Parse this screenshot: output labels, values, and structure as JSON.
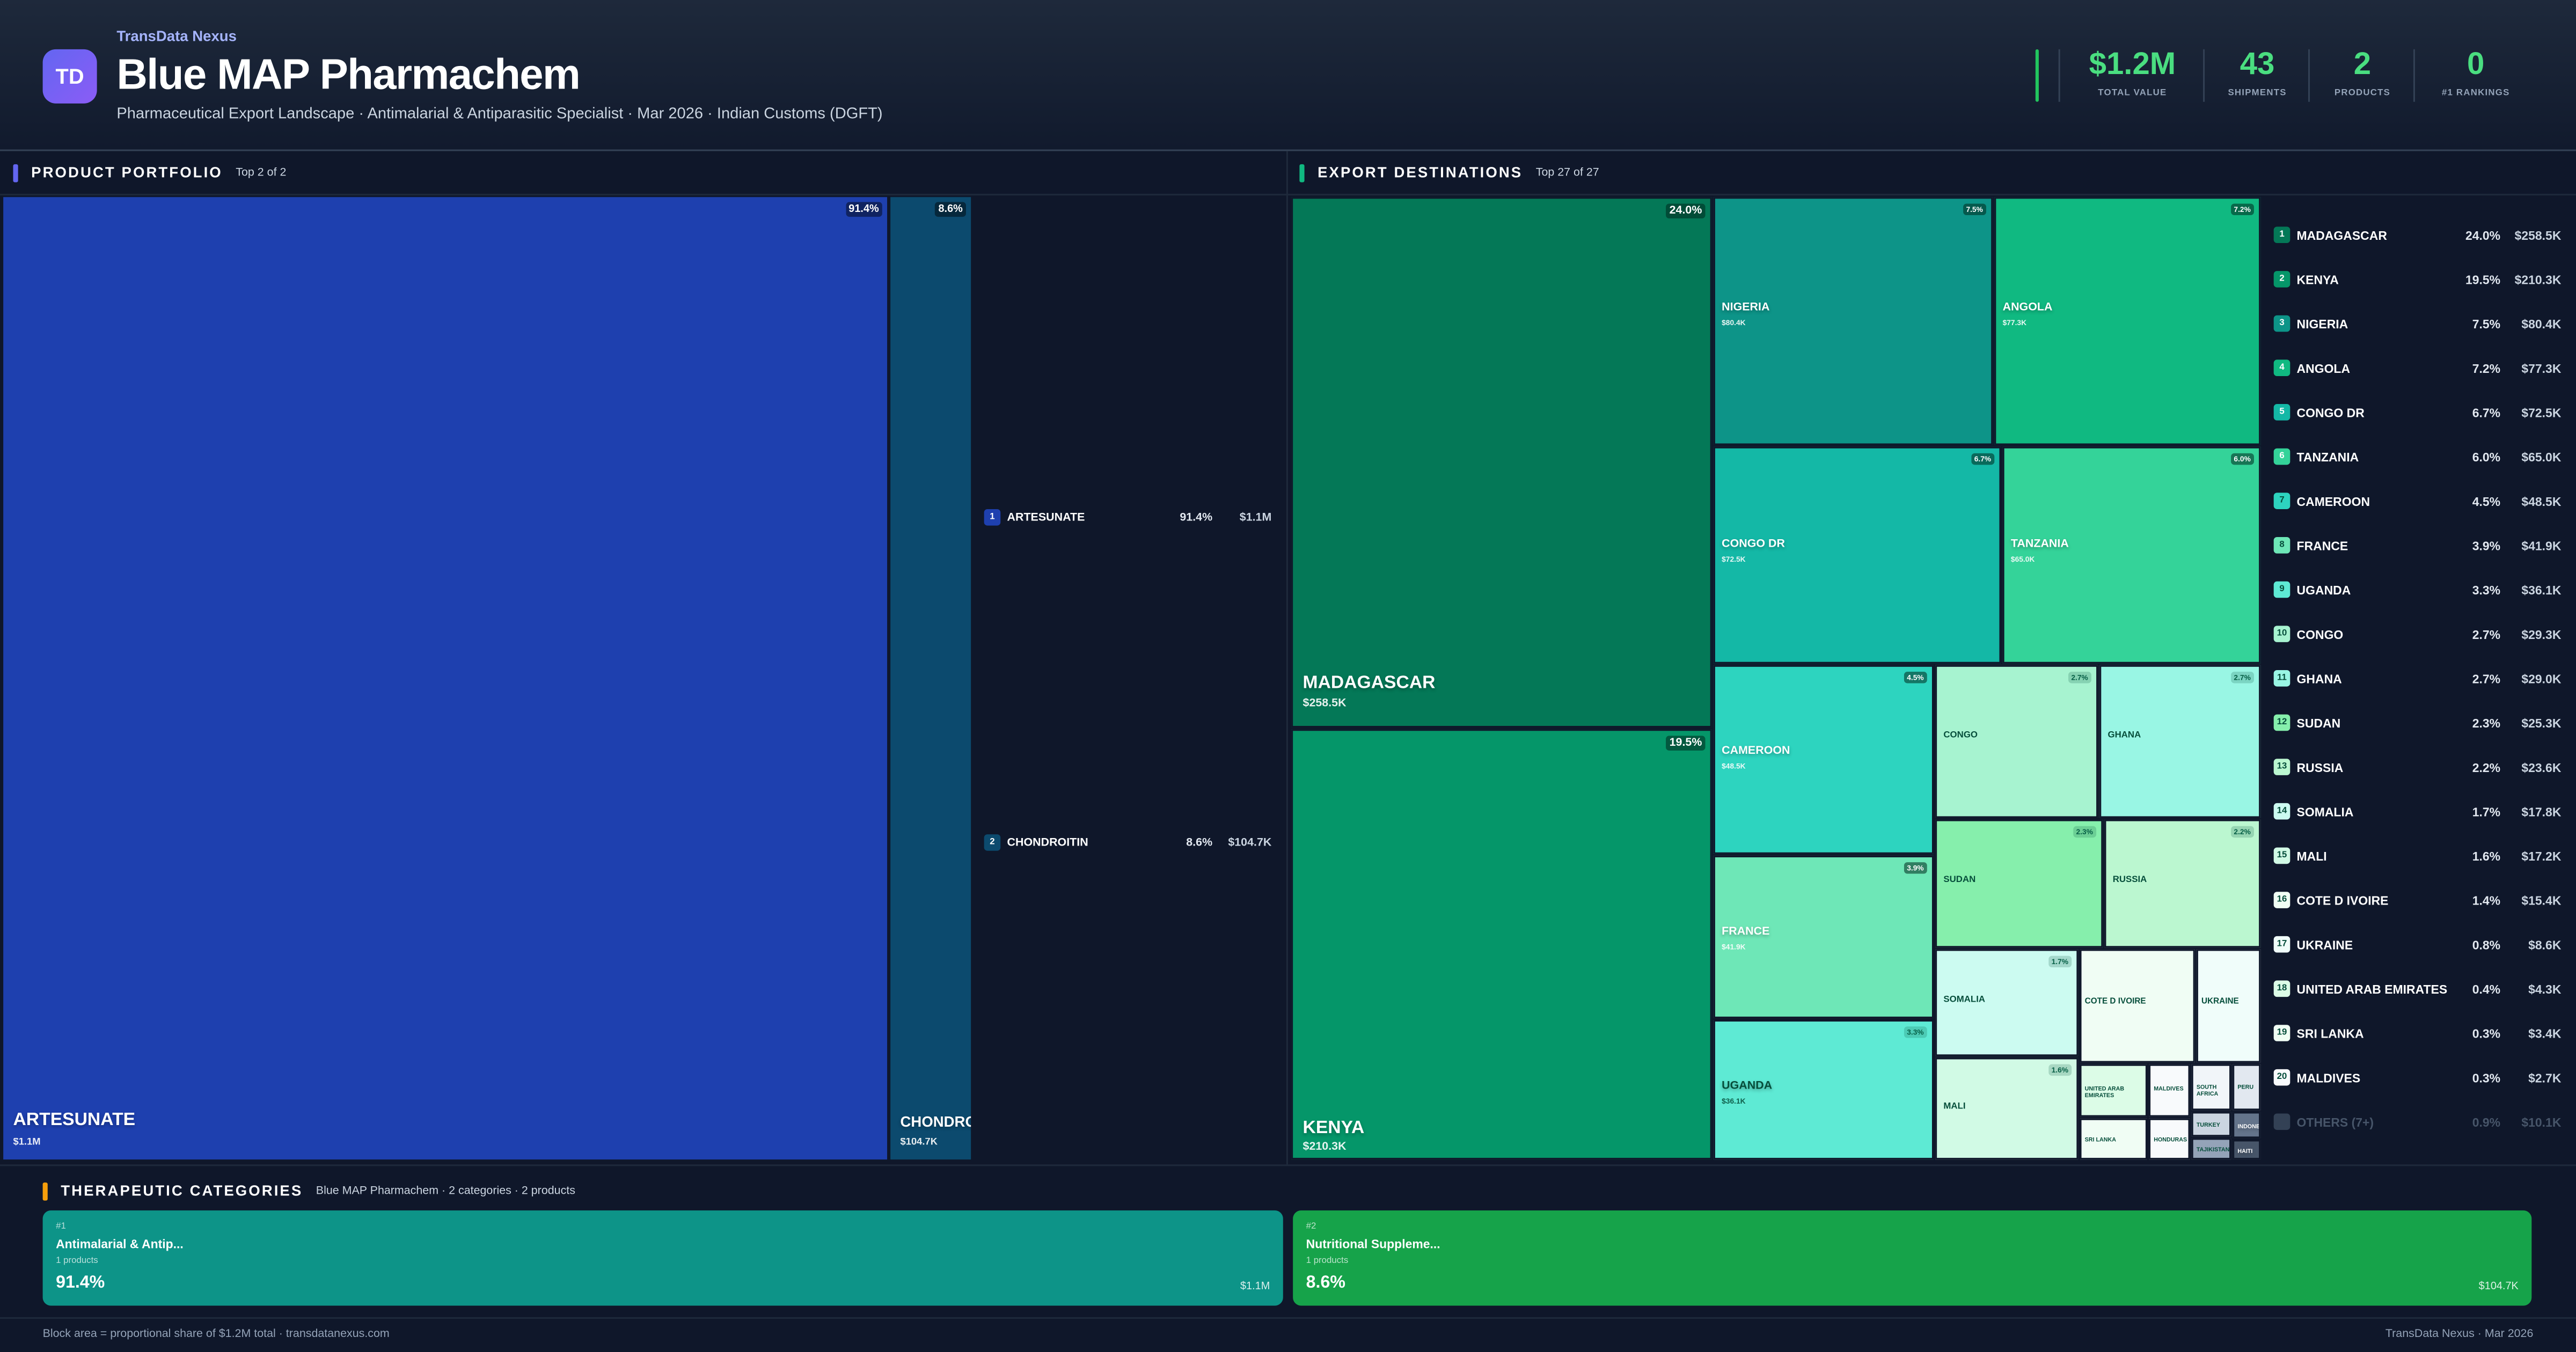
{
  "header": {
    "logo_text": "TD",
    "brand": "TransData Nexus",
    "title": "Blue MAP Pharmachem",
    "subtitle": "Pharmaceutical Export Landscape · Antimalarial & Antiparasitic Specialist · Mar 2026 · Indian Customs (DGFT)",
    "accent_color": "#4ade80",
    "stats": [
      {
        "value": "$1.2M",
        "label": "TOTAL VALUE"
      },
      {
        "value": "43",
        "label": "SHIPMENTS"
      },
      {
        "value": "2",
        "label": "PRODUCTS"
      },
      {
        "value": "0",
        "label": "#1 RANKINGS"
      }
    ]
  },
  "portfolio": {
    "title": "PRODUCT PORTFOLIO",
    "subtitle": "Top 2 of 2",
    "accent_color": "#6366f1",
    "items": [
      {
        "rank": "1",
        "name": "ARTESUNATE",
        "tile_name": "ARTESUNATE",
        "pct": "91.4%",
        "value": "$1.1M",
        "color": "#1e40af"
      },
      {
        "rank": "2",
        "name": "CHONDROITIN",
        "tile_name": "CHONDROITIN",
        "pct": "8.6%",
        "value": "$104.7K",
        "color": "#0c4a6e"
      }
    ]
  },
  "exports": {
    "title": "EXPORT DESTINATIONS",
    "subtitle": "Top 27 of 27",
    "accent_color": "#10b981",
    "tiles": [
      {
        "name": "MADAGASCAR",
        "value": "$258.5K",
        "pct": "24.0%",
        "color": "#047857"
      },
      {
        "name": "KENYA",
        "value": "$210.3K",
        "pct": "19.5%",
        "color": "#059669"
      },
      {
        "name": "NIGERIA",
        "value": "$80.4K",
        "pct": "7.5%",
        "color": "#0d9488"
      },
      {
        "name": "ANGOLA",
        "value": "$77.3K",
        "pct": "7.2%",
        "color": "#10b981"
      },
      {
        "name": "CONGO DR",
        "value": "$72.5K",
        "pct": "6.7%",
        "color": "#14b8a6"
      },
      {
        "name": "TANZANIA",
        "value": "$65.0K",
        "pct": "6.0%",
        "color": "#34d399"
      },
      {
        "name": "CAMEROON",
        "value": "$48.5K",
        "pct": "4.5%",
        "color": "#2dd4bf"
      },
      {
        "name": "FRANCE",
        "value": "$41.9K",
        "pct": "3.9%",
        "color": "#6ee7b7"
      },
      {
        "name": "UGANDA",
        "value": "$36.1K",
        "pct": "3.3%",
        "color": "#5eead4"
      },
      {
        "name": "CONGO",
        "pct": "2.7%",
        "color": "#a7f3d0"
      },
      {
        "name": "GHANA",
        "pct": "2.7%",
        "color": "#99f6e4"
      },
      {
        "name": "SUDAN",
        "pct": "2.3%",
        "color": "#86efac"
      },
      {
        "name": "RUSSIA",
        "pct": "2.2%",
        "color": "#bbf7d0"
      },
      {
        "name": "SOMALIA",
        "pct": "1.7%",
        "color": "#ccfbf1"
      },
      {
        "name": "MALI",
        "pct": "1.6%",
        "color": "#d1fae5"
      },
      {
        "name": "COTE D IVOIRE",
        "color": "#f0fdf4"
      },
      {
        "name": "UKRAINE",
        "color": "#f0fdfa"
      },
      {
        "name": "UNITED ARAB EMIRATES",
        "color": "#dcfce7"
      },
      {
        "name": "SRI LANKA",
        "color": "#f0fdf4"
      },
      {
        "name": "MALDIVES",
        "color": "#f8fafc"
      },
      {
        "name": "HONDURAS",
        "color": "#f8fafc"
      },
      {
        "name": "SOUTH AFRICA",
        "color": "#f1f5f9"
      },
      {
        "name": "PERU",
        "color": "#e2e8f0"
      },
      {
        "name": "TURKEY",
        "color": "#cbd5e1"
      },
      {
        "name": "INDONESIA",
        "color": "#64748b"
      },
      {
        "name": "TAJIKISTAN",
        "color": "#94a3b8"
      },
      {
        "name": "HAITI",
        "color": "#475569"
      }
    ],
    "ranking": [
      {
        "rank": "1",
        "name": "MADAGASCAR",
        "pct": "24.0%",
        "value": "$258.5K"
      },
      {
        "rank": "2",
        "name": "KENYA",
        "pct": "19.5%",
        "value": "$210.3K"
      },
      {
        "rank": "3",
        "name": "NIGERIA",
        "pct": "7.5%",
        "value": "$80.4K"
      },
      {
        "rank": "4",
        "name": "ANGOLA",
        "pct": "7.2%",
        "value": "$77.3K"
      },
      {
        "rank": "5",
        "name": "CONGO DR",
        "pct": "6.7%",
        "value": "$72.5K"
      },
      {
        "rank": "6",
        "name": "TANZANIA",
        "pct": "6.0%",
        "value": "$65.0K"
      },
      {
        "rank": "7",
        "name": "CAMEROON",
        "pct": "4.5%",
        "value": "$48.5K"
      },
      {
        "rank": "8",
        "name": "FRANCE",
        "pct": "3.9%",
        "value": "$41.9K"
      },
      {
        "rank": "9",
        "name": "UGANDA",
        "pct": "3.3%",
        "value": "$36.1K"
      },
      {
        "rank": "10",
        "name": "CONGO",
        "pct": "2.7%",
        "value": "$29.3K"
      },
      {
        "rank": "11",
        "name": "GHANA",
        "pct": "2.7%",
        "value": "$29.0K"
      },
      {
        "rank": "12",
        "name": "SUDAN",
        "pct": "2.3%",
        "value": "$25.3K"
      },
      {
        "rank": "13",
        "name": "RUSSIA",
        "pct": "2.2%",
        "value": "$23.6K"
      },
      {
        "rank": "14",
        "name": "SOMALIA",
        "pct": "1.7%",
        "value": "$17.8K"
      },
      {
        "rank": "15",
        "name": "MALI",
        "pct": "1.6%",
        "value": "$17.2K"
      },
      {
        "rank": "16",
        "name": "COTE D IVOIRE",
        "pct": "1.4%",
        "value": "$15.4K"
      },
      {
        "rank": "17",
        "name": "UKRAINE",
        "pct": "0.8%",
        "value": "$8.6K"
      },
      {
        "rank": "18",
        "name": "UNITED ARAB EMIRATES",
        "pct": "0.4%",
        "value": "$4.3K"
      },
      {
        "rank": "19",
        "name": "SRI LANKA",
        "pct": "0.3%",
        "value": "$3.4K"
      },
      {
        "rank": "20",
        "name": "MALDIVES",
        "pct": "0.3%",
        "value": "$2.7K"
      }
    ],
    "others": {
      "name": "OTHERS (7+)",
      "pct": "0.9%",
      "value": "$10.1K"
    }
  },
  "categories": {
    "title": "THERAPEUTIC CATEGORIES",
    "subtitle": "Blue MAP Pharmachem · 2 categories · 2 products",
    "accent_color": "#f59e0b",
    "items": [
      {
        "rank": "#1",
        "name": "Antimalarial & Antip...",
        "products": "1 products",
        "pct": "91.4%",
        "value": "$1.1M",
        "color": "#0d9488"
      },
      {
        "rank": "#2",
        "name": "Nutritional Suppleme...",
        "products": "1 products",
        "pct": "8.6%",
        "value": "$104.7K",
        "color": "#16a34a"
      }
    ]
  },
  "footer": {
    "left": "Block area = proportional share of $1.2M total · transdatanexus.com",
    "right": "TransData Nexus · Mar 2026"
  }
}
